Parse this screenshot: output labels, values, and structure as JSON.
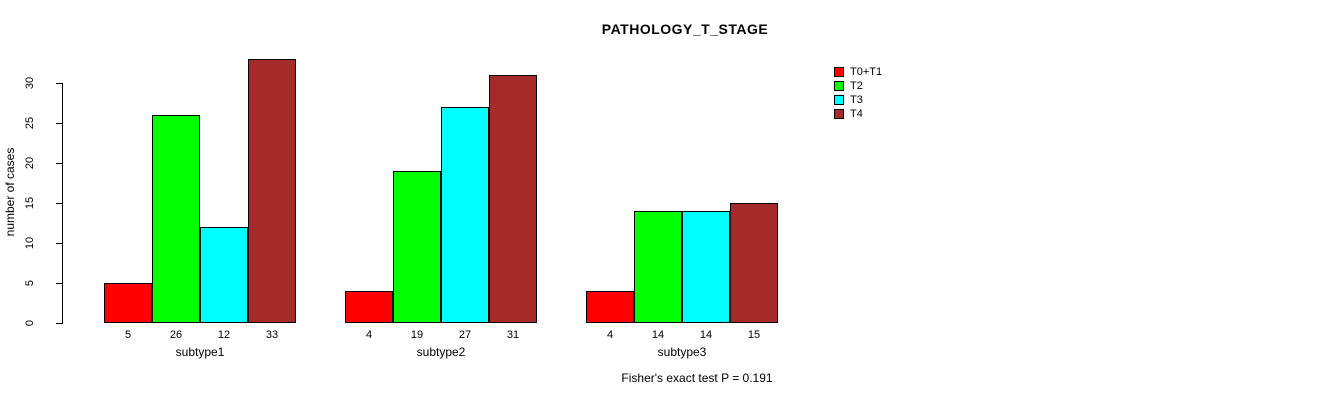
{
  "chart_data": {
    "type": "bar",
    "title": "PATHOLOGY_T_STAGE",
    "categories": [
      "subtype1",
      "subtype2",
      "subtype3"
    ],
    "series": [
      {
        "name": "T0+T1",
        "color": "#FF0000",
        "values": [
          5,
          4,
          4
        ]
      },
      {
        "name": "T2",
        "color": "#00FF00",
        "values": [
          26,
          19,
          14
        ]
      },
      {
        "name": "T3",
        "color": "#00FFFF",
        "values": [
          12,
          27,
          14
        ]
      },
      {
        "name": "T4",
        "color": "#A52A2A",
        "values": [
          33,
          31,
          15
        ]
      }
    ],
    "xlabel": "",
    "ylabel": "number of cases",
    "yticks": [
      0,
      5,
      10,
      15,
      20,
      25,
      30
    ],
    "ylim": [
      0,
      33
    ],
    "grid": false,
    "legend_position": "right",
    "bar_value_labels": true,
    "annotation": "Fisher's exact test P = 0.191"
  }
}
